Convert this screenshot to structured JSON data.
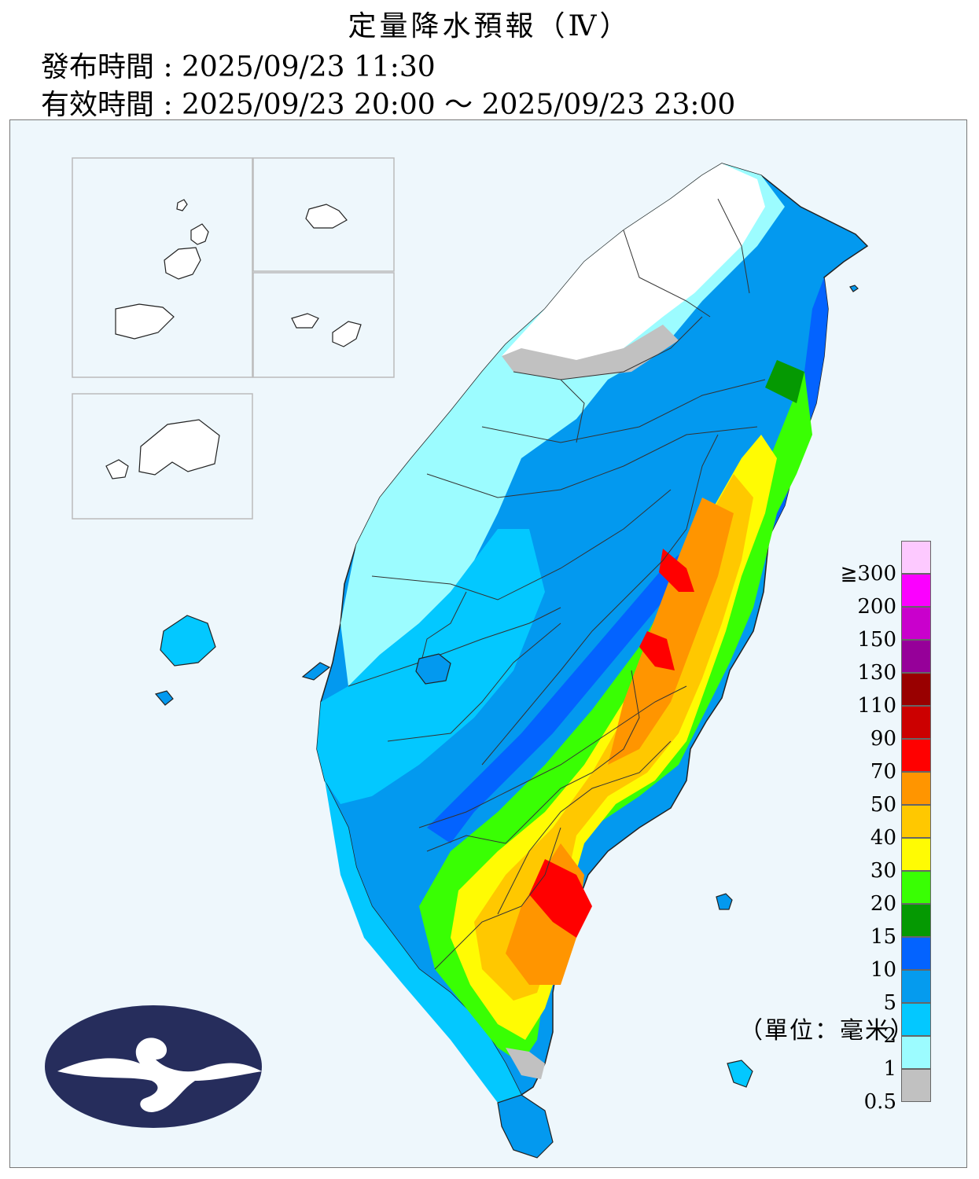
{
  "header": {
    "title": "定量降水預報（Ⅳ）",
    "issue_label": "發布時間",
    "issue_time": "2025/09/23 11:30",
    "valid_label": "有效時間",
    "valid_time": "2025/09/23 20:00 ～ 2025/09/23 23:00"
  },
  "legend": {
    "labels": [
      "0.5",
      "1",
      "2",
      "5",
      "10",
      "15",
      "20",
      "30",
      "40",
      "50",
      "70",
      "90",
      "110",
      "130",
      "150",
      "200",
      "≧300"
    ],
    "colors": [
      "#c1c1c1",
      "#9cfcff",
      "#03c8ff",
      "#059bee",
      "#0363ff",
      "#059902",
      "#39ff03",
      "#fffb03",
      "#ffc800",
      "#ff9500",
      "#ff0000",
      "#cc0000",
      "#990000",
      "#960099",
      "#c900cc",
      "#fb00ff",
      "#fdc9ff"
    ]
  },
  "unit": "（單位：毫米）",
  "map": {
    "region": "Taiwan",
    "heaviest_areas": [
      "southeast mountains",
      "central east mountains"
    ],
    "insets": [
      "Matsu",
      "Kinmen",
      "Wuqiu"
    ]
  }
}
